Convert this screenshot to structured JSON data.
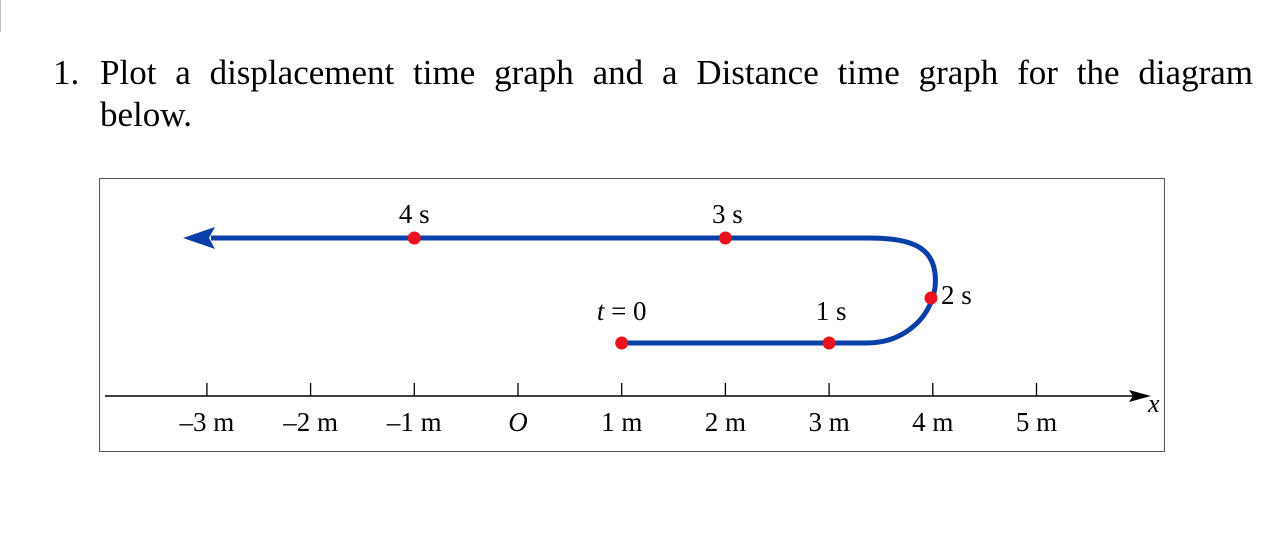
{
  "question": {
    "number": "1.",
    "line1": "Plot a displacement time graph and a Distance time graph for the diagram",
    "line2": "below."
  },
  "diagram": {
    "axis": {
      "variable": "x",
      "ticks": [
        {
          "value": -3,
          "label": "–3 m"
        },
        {
          "value": -2,
          "label": "–2 m"
        },
        {
          "value": -1,
          "label": "–1 m"
        },
        {
          "value": 0,
          "label": "O"
        },
        {
          "value": 1,
          "label": "1 m"
        },
        {
          "value": 2,
          "label": "2 m"
        },
        {
          "value": 3,
          "label": "3 m"
        },
        {
          "value": 4,
          "label": "4 m"
        },
        {
          "value": 5,
          "label": "5 m"
        }
      ]
    },
    "points": [
      {
        "label": "t = 0",
        "x": 1
      },
      {
        "label": "1 s",
        "x": 3
      },
      {
        "label": "2 s",
        "x": 4
      },
      {
        "label": "3 s",
        "x": 2
      },
      {
        "label": "4 s",
        "x": -1
      }
    ],
    "colors": {
      "path": "#0a3ea8",
      "dot": "#e8131e",
      "frame": "#555555"
    }
  }
}
